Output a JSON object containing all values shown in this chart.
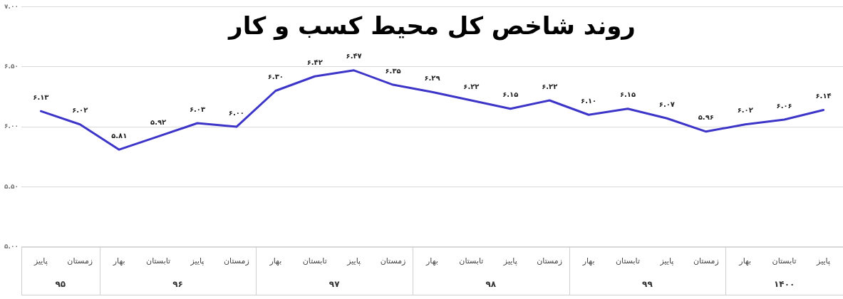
{
  "chart_data": {
    "type": "line",
    "title": "روند شاخص کل محیط کسب و کار",
    "categories": [
      "پاییز",
      "زمستان",
      "بهار",
      "تابستان",
      "پاییز",
      "زمستان",
      "بهار",
      "تابستان",
      "پاییز",
      "زمستان",
      "بهار",
      "تابستان",
      "پاییز",
      "زمستان",
      "بهار",
      "تابستان",
      "پاییز",
      "زمستان",
      "بهار",
      "تابستان",
      "پاییز"
    ],
    "series": [
      {
        "color": "#3d35c8",
        "values": [
          6.13,
          6.02,
          5.81,
          5.92,
          6.03,
          6.0,
          6.3,
          6.42,
          6.47,
          6.35,
          6.29,
          6.22,
          6.15,
          6.22,
          6.1,
          6.15,
          6.07,
          5.96,
          6.02,
          6.06,
          6.14
        ],
        "value_labels": [
          "۶.۱۳",
          "۶.۰۲",
          "۵.۸۱",
          "۵.۹۲",
          "۶.۰۳",
          "۶.۰۰",
          "۶.۳۰",
          "۶.۴۲",
          "۶.۴۷",
          "۶.۳۵",
          "۶.۲۹",
          "۶.۲۲",
          "۶.۱۵",
          "۶.۲۲",
          "۶.۱۰",
          "۶.۱۵",
          "۶.۰۷",
          "۵.۹۶",
          "۶.۰۲",
          "۶.۰۶",
          "۶.۱۴"
        ]
      }
    ],
    "annotations": [
      "۹۵",
      "۹۶",
      "۹۷",
      "۹۸",
      "۹۹",
      "۱۴۰۰"
    ],
    "ylim": [
      5,
      7
    ],
    "yticks": [
      {
        "value": 5,
        "label": "۵.۰۰"
      },
      {
        "value": 5.5,
        "label": "۵.۵۰"
      },
      {
        "value": 6,
        "label": "۶.۰۰"
      },
      {
        "value": 6.5,
        "label": "۶.۵۰"
      },
      {
        "value": 7,
        "label": "۷.۰۰"
      }
    ],
    "grid": "y",
    "legend": false,
    "marker": "none",
    "line_style": "solid"
  }
}
